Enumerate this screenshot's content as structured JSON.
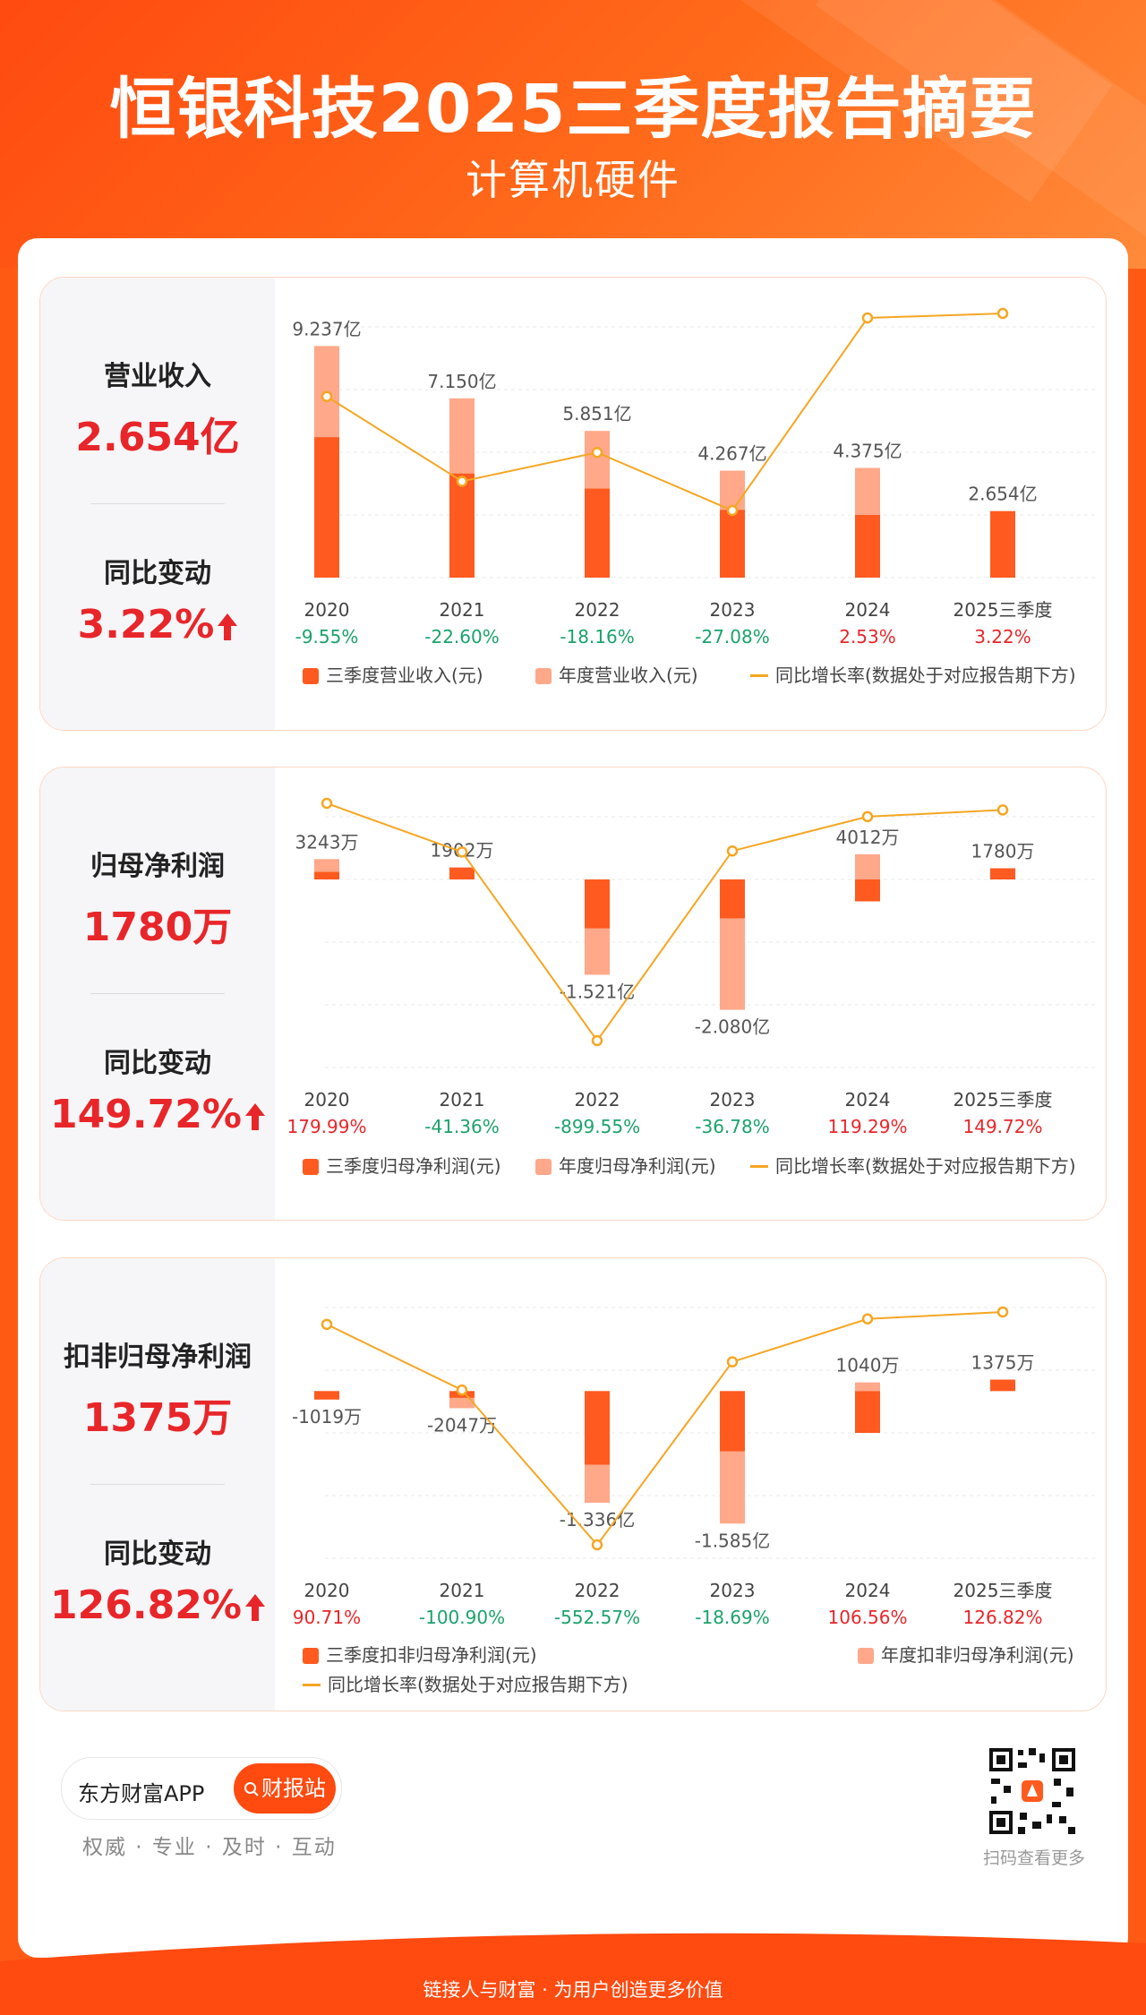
{
  "header": {
    "title": "恒银科技2025三季度报告摘要",
    "subtitle": "计算机硬件"
  },
  "colors": {
    "q3_bar": "#ff5a1f",
    "annual_bar": "#ffa88a",
    "line": "#f5a623",
    "positive": "#e8262a",
    "negative": "#1aa36b"
  },
  "sections": [
    {
      "metric_label": "营业收入",
      "metric_value": "2.654亿",
      "change_label": "同比变动",
      "change_value": "3.22%",
      "legend": {
        "q3": "三季度营业收入(元)",
        "annual": "年度营业收入(元)",
        "line": "同比增长率(数据处于对应报告期下方)"
      }
    },
    {
      "metric_label": "归母净利润",
      "metric_value": "1780万",
      "change_label": "同比变动",
      "change_value": "149.72%",
      "legend": {
        "q3": "三季度归母净利润(元)",
        "annual": "年度归母净利润(元)",
        "line": "同比增长率(数据处于对应报告期下方)"
      }
    },
    {
      "metric_label": "扣非归母净利润",
      "metric_value": "1375万",
      "change_label": "同比变动",
      "change_value": "126.82%",
      "legend": {
        "q3": "三季度扣非归母净利润(元)",
        "annual": "年度扣非归母净利润(元)",
        "line": "同比增长率(数据处于对应报告期下方)"
      }
    }
  ],
  "chart_data": [
    {
      "type": "bar",
      "title": "营业收入",
      "categories": [
        "2020",
        "2021",
        "2022",
        "2023",
        "2024",
        "2025三季度"
      ],
      "series": [
        {
          "name": "三季度营业收入(元)",
          "values": [
            5.6,
            4.15,
            3.55,
            2.7,
            2.5,
            2.654
          ]
        },
        {
          "name": "年度营业收入(元)",
          "values": [
            9.237,
            7.15,
            5.851,
            4.267,
            4.375,
            null
          ]
        }
      ],
      "value_labels": [
        "9.237亿",
        "7.150亿",
        "5.851亿",
        "4.267亿",
        "4.375亿",
        "2.654亿"
      ],
      "growth": [
        "-9.55%",
        "-22.60%",
        "-18.16%",
        "-27.08%",
        "2.53%",
        "3.22%"
      ],
      "growth_values": [
        -9.55,
        -22.6,
        -18.16,
        -27.08,
        2.53,
        3.22
      ],
      "ylim": [
        0,
        10
      ]
    },
    {
      "type": "bar",
      "title": "归母净利润",
      "categories": [
        "2020",
        "2021",
        "2022",
        "2023",
        "2024",
        "2025三季度"
      ],
      "series": [
        {
          "name": "三季度归母净利润(元)",
          "values": [
            1200,
            1900,
            -7800,
            -6200,
            -3500,
            1780
          ]
        },
        {
          "name": "年度归母净利润(元)",
          "values": [
            3243,
            1902,
            -15210,
            -20800,
            4012,
            null
          ]
        }
      ],
      "value_labels": [
        "3243万",
        "1902万",
        "-1.521亿",
        "-2.080亿",
        "4012万",
        "1780万"
      ],
      "growth": [
        "179.99%",
        "-41.36%",
        "-899.55%",
        "-36.78%",
        "119.29%",
        "149.72%"
      ],
      "growth_values": [
        179.99,
        -41.36,
        -899.55,
        -36.78,
        119.29,
        149.72
      ],
      "ylim": [
        -30000,
        10000
      ]
    },
    {
      "type": "bar",
      "title": "扣非归母净利润",
      "categories": [
        "2020",
        "2021",
        "2022",
        "2023",
        "2024",
        "2025三季度"
      ],
      "series": [
        {
          "name": "三季度扣非归母净利润(元)",
          "values": [
            -1000,
            -800,
            -8800,
            -7200,
            -5000,
            1375
          ]
        },
        {
          "name": "年度扣非归母净利润(元)",
          "values": [
            -1019,
            -2047,
            -13360,
            -15850,
            1040,
            null
          ]
        }
      ],
      "value_labels": [
        "-1019万",
        "-2047万",
        "-1.336亿",
        "-1.585亿",
        "1040万",
        "1375万"
      ],
      "growth": [
        "90.71%",
        "-100.90%",
        "-552.57%",
        "-18.69%",
        "106.56%",
        "126.82%"
      ],
      "growth_values": [
        90.71,
        -100.9,
        -552.57,
        -18.69,
        106.56,
        126.82
      ],
      "ylim": [
        -20000,
        10000
      ]
    }
  ],
  "footer": {
    "app_name": "东方财富APP",
    "search_button": "财报站",
    "slogan": "权威 · 专业 · 及时 · 互动",
    "qr_caption": "扫码查看更多",
    "bottom_text": "链接人与财富 · 为用户创造更多价值"
  }
}
